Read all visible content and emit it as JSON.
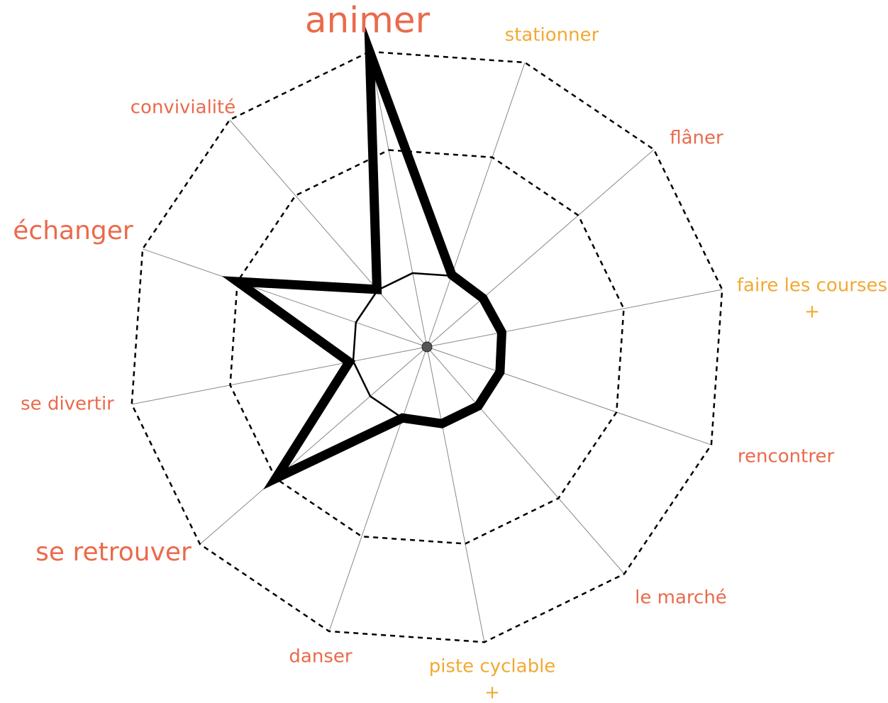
{
  "chart_data": {
    "type": "radar",
    "categories": [
      [
        "animer"
      ],
      [
        "stationner"
      ],
      [
        "flâner"
      ],
      [
        "faire les courses",
        "+"
      ],
      [
        "rencontrer"
      ],
      [
        "le marché"
      ],
      [
        "piste cyclable",
        "+"
      ],
      [
        "danser"
      ],
      [
        "se retrouver"
      ],
      [
        "se divertir"
      ],
      [
        "échanger"
      ],
      [
        "convivialité"
      ]
    ],
    "label_colors": [
      "#ea6a4b",
      "#f2a933",
      "#ea6a4b",
      "#f2a933",
      "#ea6a4b",
      "#ea6a4b",
      "#f2a933",
      "#ea6a4b",
      "#ea6a4b",
      "#ea6a4b",
      "#ea6a4b",
      "#ea6a4b"
    ],
    "series": [
      {
        "color": "#000000",
        "values": [
          0.75,
          0.75,
          0.75,
          0.75,
          0.75,
          0.75,
          0.75,
          0.75,
          0.75,
          0.75,
          0.75,
          0.75
        ]
      },
      {
        "color": "#000000",
        "values": [
          3,
          0.76,
          0.74,
          0.76,
          0.77,
          0.78,
          0.78,
          0.75,
          2,
          0.79,
          2,
          0.76
        ]
      }
    ],
    "ylim": [
      0,
      3
    ],
    "yticks": [
      2,
      3
    ],
    "grid": true
  }
}
